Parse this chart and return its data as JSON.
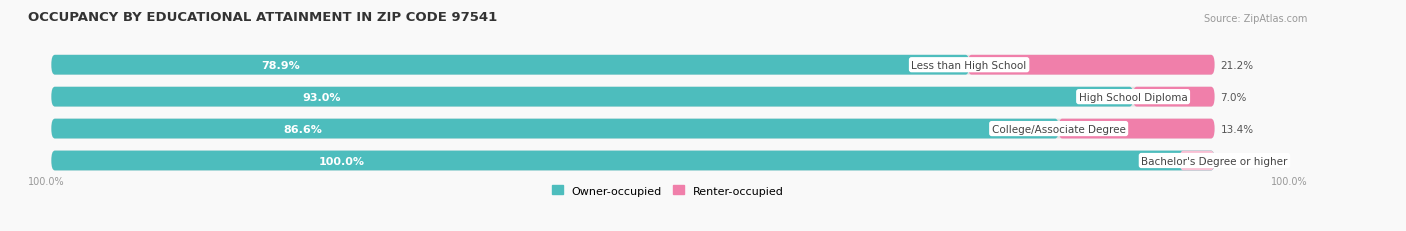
{
  "title": "OCCUPANCY BY EDUCATIONAL ATTAINMENT IN ZIP CODE 97541",
  "source": "Source: ZipAtlas.com",
  "categories": [
    "Less than High School",
    "High School Diploma",
    "College/Associate Degree",
    "Bachelor's Degree or higher"
  ],
  "owner_pct": [
    78.9,
    93.0,
    86.6,
    100.0
  ],
  "renter_pct": [
    21.2,
    7.0,
    13.4,
    0.0
  ],
  "owner_color": "#4dbdbd",
  "renter_color": "#f07faa",
  "renter_color_light": "#f9c0d4",
  "bg_color": "#f9f9f9",
  "bar_track_color": "#e2e2e2",
  "title_fontsize": 9.5,
  "label_fontsize": 8.0,
  "cat_fontsize": 7.5,
  "bar_height": 0.62,
  "x_axis_label": "100.0%",
  "legend_owner": "Owner-occupied",
  "legend_renter": "Renter-occupied"
}
